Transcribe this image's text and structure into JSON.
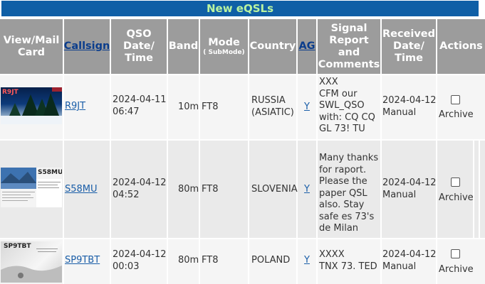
{
  "title": "New eQSLs",
  "headers": {
    "view_mail": "View/Mail Card",
    "callsign": "Callsign",
    "qso_date": "QSO Date/ Time",
    "band": "Band",
    "mode": "Mode",
    "submode": "( SubMode)",
    "country": "Country",
    "ag": "AG",
    "signal": "Signal Report and Comments",
    "received": "Received Date/ Time",
    "actions": "Actions"
  },
  "rows": [
    {
      "callsign": "R9JT",
      "date": "2024-04-11",
      "time": "06:47",
      "band": "10m",
      "mode": "FT8",
      "country_l1": "RUSSIA",
      "country_l2": "(ASIATIC)",
      "ag": "Y",
      "comment": "XXX\nCFM our\nSWL_QSO\nwith: CQ CQ\nGL 73! TU",
      "received_date": "2024-04-12",
      "received_note": "Manual",
      "archive_label": "Archive",
      "card_label": "R9JT"
    },
    {
      "callsign": "S58MU",
      "date": "2024-04-12",
      "time": "04:52",
      "band": "80m",
      "mode": "FT8",
      "country_l1": "SLOVENIA",
      "country_l2": "",
      "ag": "Y",
      "comment": "Many thanks\nfor raport.\nPlease the\npaper QSL\nalso. Stay\nsafe es 73's\nde Milan",
      "received_date": "2024-04-12",
      "received_note": "Manual",
      "archive_label": "Archive",
      "card_label": "S58MU"
    },
    {
      "callsign": "SP9TBT",
      "date": "2024-04-12",
      "time": "00:03",
      "band": "80m",
      "mode": "FT8",
      "country_l1": "POLAND",
      "country_l2": "",
      "ag": "Y",
      "comment": "XXXX\nTNX 73. TED",
      "received_date": "2024-04-12",
      "received_note": "Manual",
      "archive_label": "Archive",
      "card_label": "SP9TBT"
    }
  ]
}
